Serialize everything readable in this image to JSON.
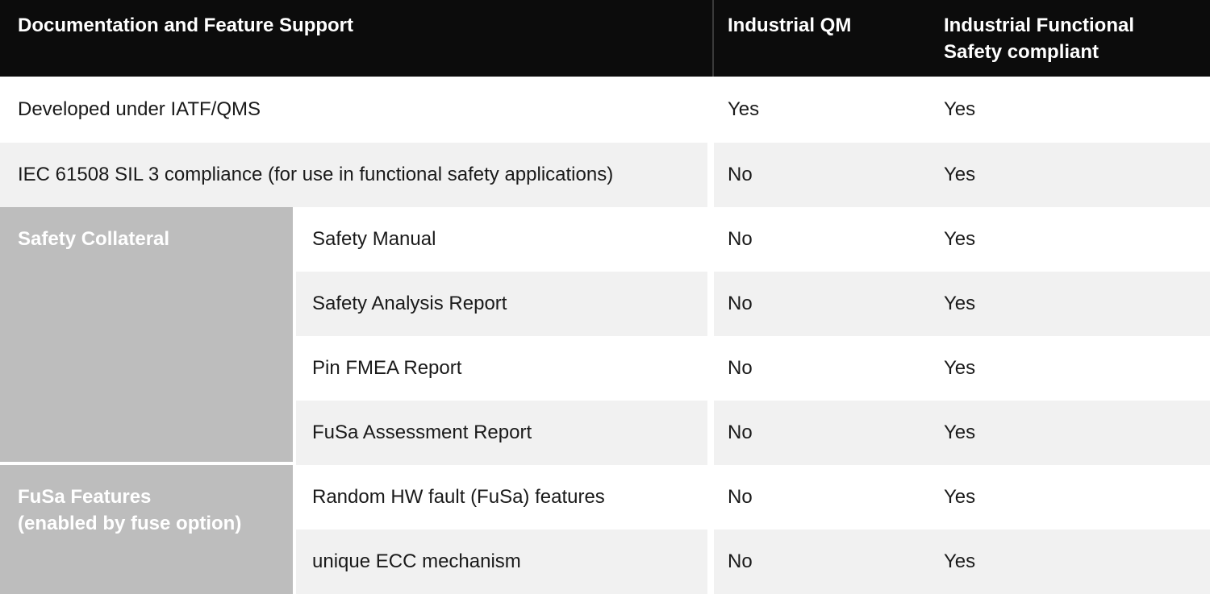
{
  "header": {
    "feature_col": "Documentation and Feature Support",
    "qm_col": "Industrial QM",
    "fusa_col": "Industrial Functional\nSafety compliant"
  },
  "groups": [
    {
      "label": "Safety Collateral"
    },
    {
      "label": "FuSa Features\n(enabled by fuse option)"
    }
  ],
  "rows": [
    {
      "label": "Developed under IATF/QMS",
      "qm": "Yes",
      "fusa": "Yes"
    },
    {
      "label": "IEC 61508 SIL 3 compliance (for use in functional safety applications)",
      "qm": "No",
      "fusa": "Yes"
    },
    {
      "label": "Safety Manual",
      "qm": "No",
      "fusa": "Yes"
    },
    {
      "label": "Safety Analysis Report",
      "qm": "No",
      "fusa": "Yes"
    },
    {
      "label": "Pin FMEA Report",
      "qm": "No",
      "fusa": "Yes"
    },
    {
      "label": "FuSa Assessment Report",
      "qm": "No",
      "fusa": "Yes"
    },
    {
      "label": "Random HW fault (FuSa) features",
      "qm": "No",
      "fusa": "Yes"
    },
    {
      "label": "unique ECC mechanism",
      "qm": "No",
      "fusa": "Yes"
    }
  ],
  "colors": {
    "header_bg": "#0c0c0c",
    "header_text": "#ffffff",
    "header_divider": "#3a3a3a",
    "row_stripe_bg": "#f1f1f1",
    "row_plain_bg": "#ffffff",
    "group_cell_bg": "#bdbdbd",
    "group_cell_text": "#ffffff",
    "body_text": "#1a1a1a"
  }
}
